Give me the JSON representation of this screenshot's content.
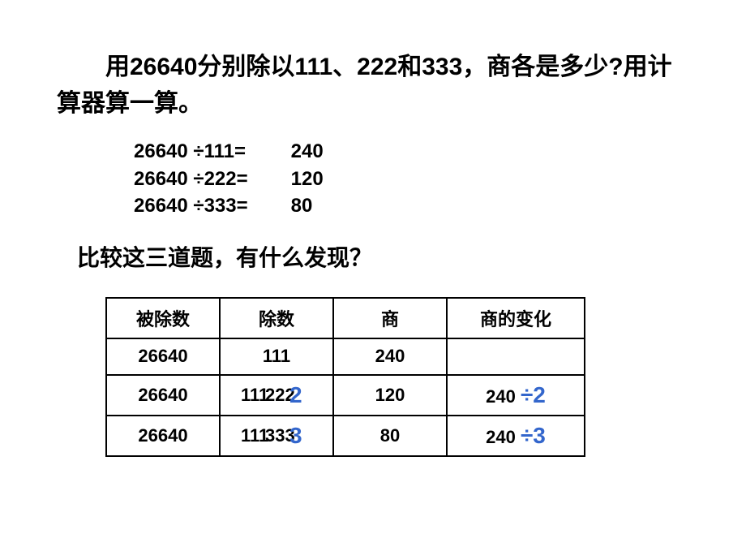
{
  "title": "用26640分别除以111、222和333，商各是多少?用计算器算一算。",
  "equations": [
    {
      "label": "26640 ÷111=",
      "result": "240"
    },
    {
      "label": "26640 ÷222=",
      "result": "120"
    },
    {
      "label": "26640 ÷333=",
      "result": "80"
    }
  ],
  "question": "比较这三道题，有什么发现？",
  "table": {
    "headers": [
      "被除数",
      "除数",
      "商",
      "商的变化"
    ],
    "rows": [
      {
        "dividend": "26640",
        "divisor": "111",
        "divisor_overlay": "",
        "divisor_blue": "",
        "quotient": "240",
        "change_base": "",
        "change_blue": ""
      },
      {
        "dividend": "26640",
        "divisor": "111",
        "divisor_overlay": "222",
        "divisor_blue": "2",
        "quotient": "120",
        "change_base": "240",
        "change_blue": "÷2"
      },
      {
        "dividend": "26640",
        "divisor": "111",
        "divisor_overlay": "333",
        "divisor_blue": "3",
        "quotient": "80",
        "change_base": "240",
        "change_blue": "÷3"
      }
    ]
  },
  "colors": {
    "text": "#000000",
    "accent_blue": "#3366cc",
    "background": "#ffffff",
    "border": "#000000"
  }
}
